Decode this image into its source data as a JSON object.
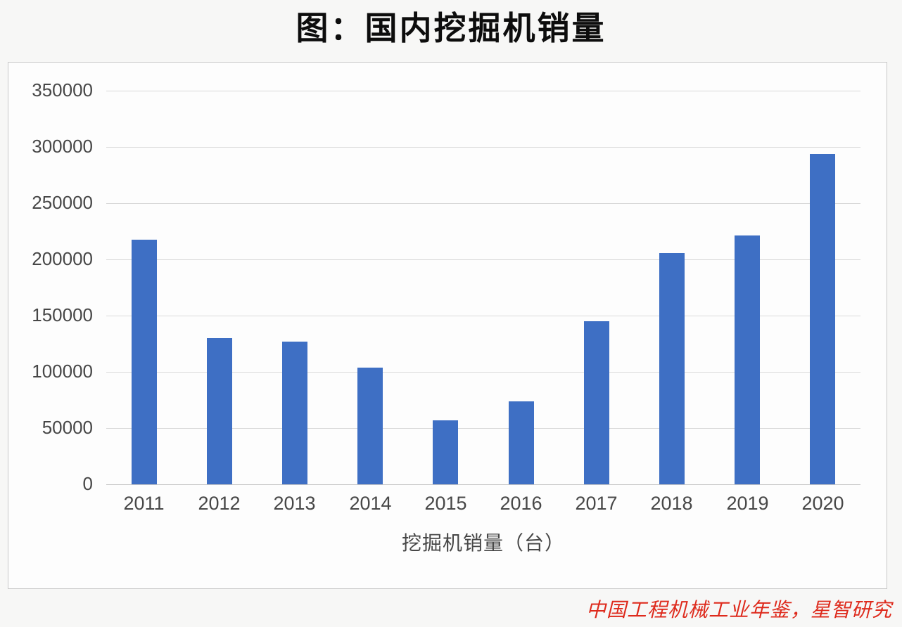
{
  "page": {
    "title": "图：国内挖掘机销量",
    "source_note": "中国工程机械工业年鉴，星智研究"
  },
  "chart_data": {
    "type": "bar",
    "title": "图：国内挖掘机销量",
    "categories": [
      "2011",
      "2012",
      "2013",
      "2014",
      "2015",
      "2016",
      "2017",
      "2018",
      "2019",
      "2020"
    ],
    "values": [
      217500,
      130000,
      127000,
      103500,
      57000,
      73500,
      145000,
      205500,
      221500,
      293500
    ],
    "xlabel": "挖掘机销量（台）",
    "ylabel": "",
    "ylim": [
      0,
      350000
    ],
    "yticks": [
      0,
      50000,
      100000,
      150000,
      200000,
      250000,
      300000,
      350000
    ],
    "grid": true,
    "legend": "none",
    "source": "中国工程机械工业年鉴，星智研究"
  },
  "colors": {
    "bar": "#3e6fc4",
    "source_text": "#de2a1c",
    "gridline": "#d9d9d9",
    "axis_text": "#474747",
    "title_text": "#0d0d0d",
    "frame_border": "#c8c8c8",
    "page_background": "#f7f7f6",
    "plot_background": "#fdfdfd"
  }
}
